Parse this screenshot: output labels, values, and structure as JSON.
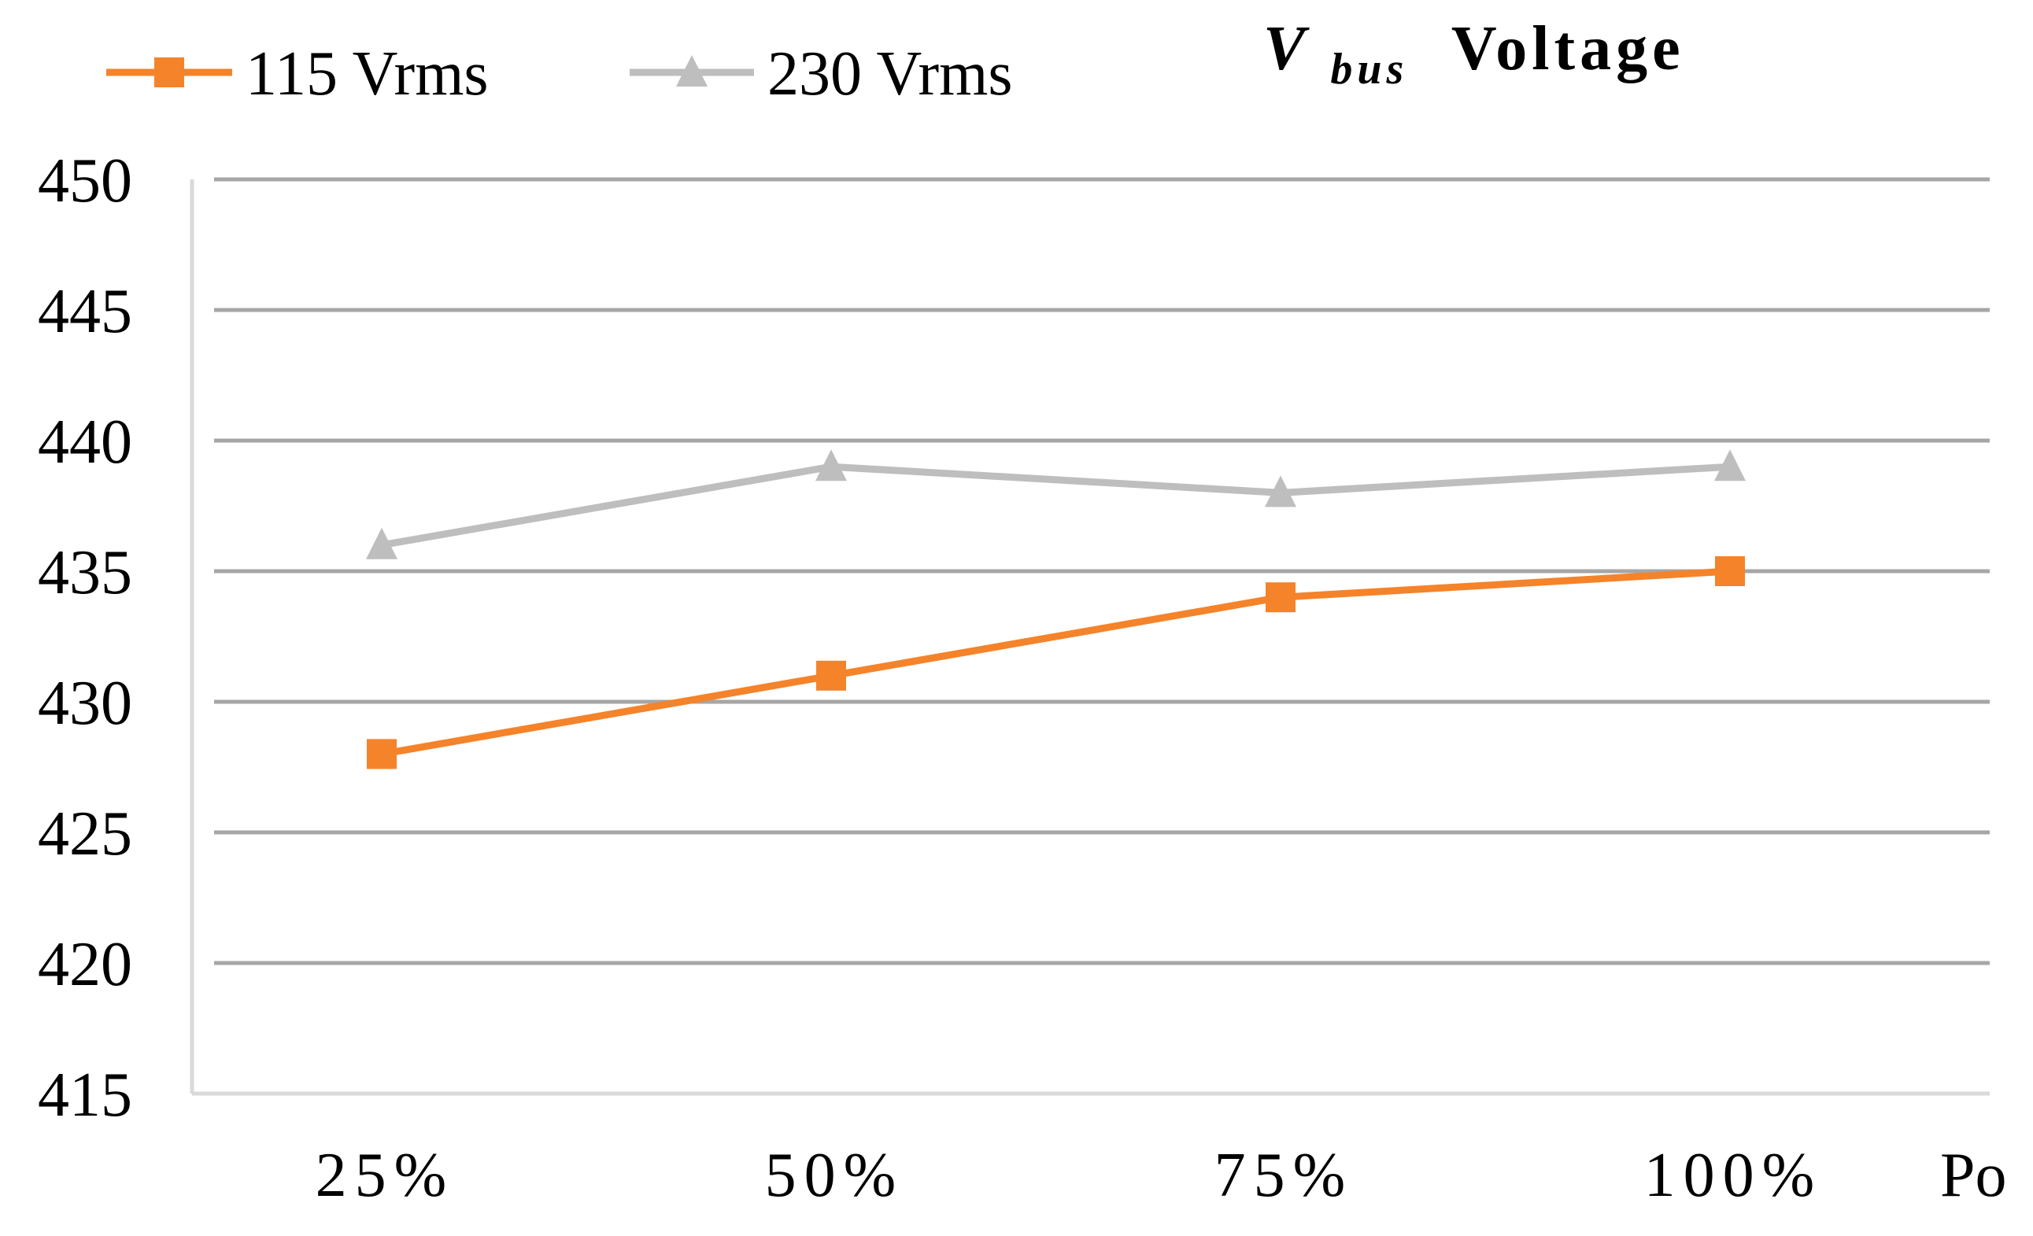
{
  "chart_data": {
    "type": "line",
    "title_main": "V",
    "title_sub": "bus",
    "title_rest": "Voltage",
    "xlabel": "Po",
    "ylabel": "",
    "categories": [
      "25%",
      "50%",
      "75%",
      "100%"
    ],
    "ylim": [
      415,
      450
    ],
    "yticks": [
      415,
      420,
      425,
      430,
      435,
      440,
      445,
      450
    ],
    "grid": true,
    "legend_position": "top-left",
    "series": [
      {
        "name": "115 Vrms",
        "marker": "square",
        "color": "#F5832A",
        "values": [
          428,
          431,
          434,
          435
        ]
      },
      {
        "name": "230 Vrms",
        "marker": "triangle",
        "color": "#BEBEBE",
        "values": [
          436,
          439,
          438,
          439
        ]
      }
    ],
    "colors": {
      "grid": "#A6A6A6",
      "axis": "#D9D9D9"
    }
  }
}
